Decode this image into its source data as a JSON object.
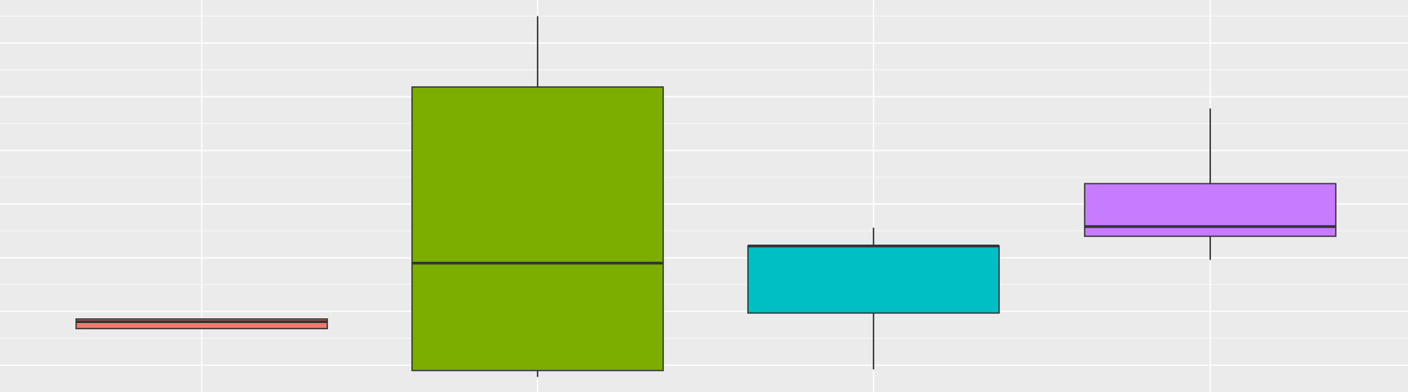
{
  "chart_data": {
    "type": "boxplot",
    "title": "",
    "xlabel": "",
    "ylabel": "",
    "categories": [
      "",
      "",
      "",
      ""
    ],
    "ylim": [
      0,
      7.3
    ],
    "y_major_ticks": [
      0.5,
      1.5,
      2.5,
      3.5,
      4.5,
      5.5,
      6.5
    ],
    "y_minor_ticks": [
      1,
      2,
      3,
      4,
      5,
      6,
      7
    ],
    "grid": true,
    "legend": "none",
    "boxes": [
      {
        "category_index": 0,
        "whisker_low": 1.18,
        "q1": 1.18,
        "median": 1.31,
        "q3": 1.36,
        "whisker_high": 1.36,
        "fill": "#F8766D"
      },
      {
        "category_index": 1,
        "whisker_low": 0.28,
        "q1": 0.4,
        "median": 2.4,
        "q3": 5.68,
        "whisker_high": 7.0,
        "fill": "#7CAE00"
      },
      {
        "category_index": 2,
        "whisker_low": 0.42,
        "q1": 1.47,
        "median": 2.72,
        "q3": 2.72,
        "whisker_high": 3.06,
        "fill": "#00BFC4"
      },
      {
        "category_index": 3,
        "whisker_low": 2.46,
        "q1": 2.9,
        "median": 3.08,
        "q3": 3.88,
        "whisker_high": 5.28,
        "fill": "#C77CFF"
      }
    ],
    "colors": {
      "panel_background": "#ebebeb",
      "grid_line": "#ffffff",
      "outline": "#333333",
      "whisker": "#1a1a1a"
    }
  }
}
